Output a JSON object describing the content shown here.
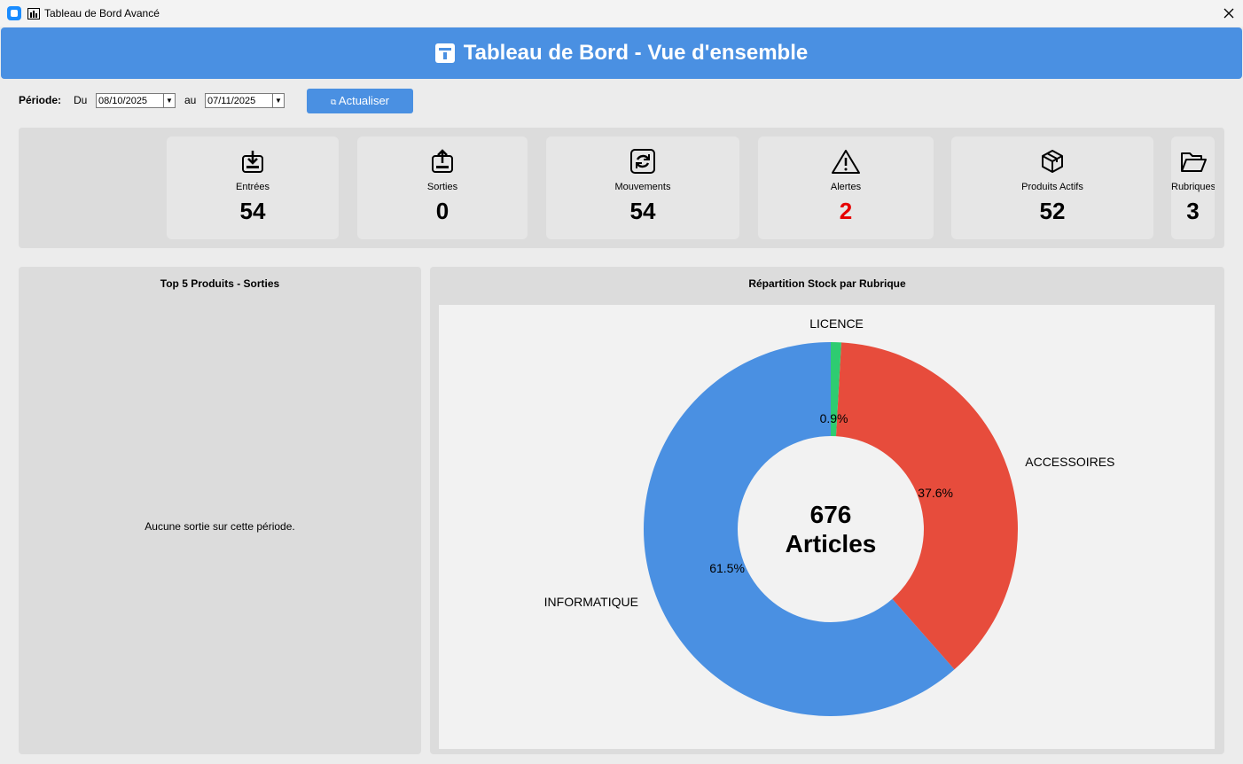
{
  "window": {
    "title": "Tableau de Bord Avancé"
  },
  "header": {
    "title": "Tableau de Bord - Vue d'ensemble"
  },
  "filters": {
    "period_label": "Période:",
    "from_label": "Du",
    "from_date": "08/10/2025",
    "to_label": "au",
    "to_date": "07/11/2025",
    "refresh_button": "Actualiser"
  },
  "kpis": [
    {
      "label": "Entrées",
      "value": 54
    },
    {
      "label": "Sorties",
      "value": 0
    },
    {
      "label": "Mouvements",
      "value": 54
    },
    {
      "label": "Alertes",
      "value": 2
    },
    {
      "label": "Produits Actifs",
      "value": 52
    },
    {
      "label": "Rubriques",
      "value": 3
    }
  ],
  "left_panel": {
    "title": "Top 5 Produits - Sorties",
    "empty_message": "Aucune sortie sur cette période."
  },
  "right_panel": {
    "title": "Répartition Stock par Rubrique",
    "chart": {
      "type": "pie",
      "categories": [
        "INFORMATIQUE",
        "ACCESSOIRES",
        "LICENCE"
      ],
      "values": [
        61.5,
        37.6,
        0.9
      ],
      "value_labels": [
        "61.5%",
        "37.6%",
        "0.9%"
      ],
      "colors": [
        "#4a90e2",
        "#e74c3c",
        "#2ecc71"
      ],
      "center_value": 676,
      "center_label": "Articles"
    }
  }
}
